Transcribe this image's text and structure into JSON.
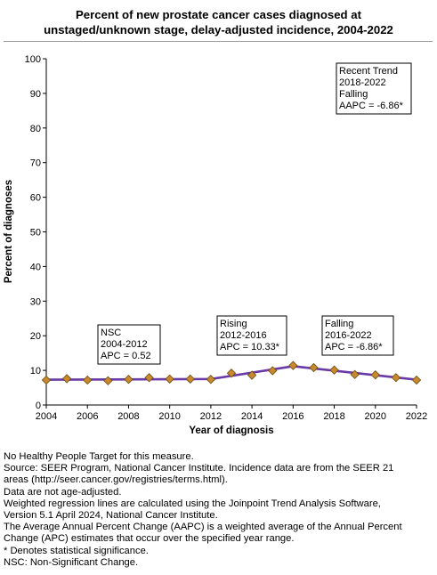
{
  "header": {
    "title_line1": "Percent of new prostate cancer cases diagnosed at",
    "title_line2": "unstaged/unknown stage, delay-adjusted incidence, 2004-2022"
  },
  "chart_data": {
    "type": "line",
    "xlabel": "Year of diagnosis",
    "ylabel": "Percent of diagnoses",
    "xlim": [
      2004,
      2022
    ],
    "ylim": [
      0,
      100
    ],
    "x_ticks": [
      2004,
      2006,
      2008,
      2010,
      2012,
      2014,
      2016,
      2018,
      2020,
      2022
    ],
    "y_ticks": [
      0,
      10,
      20,
      30,
      40,
      50,
      60,
      70,
      80,
      90,
      100
    ],
    "grid": false,
    "series": [
      {
        "kind": "observed",
        "marker": "diamond",
        "color": "#c8892e",
        "x": [
          2004,
          2005,
          2006,
          2007,
          2008,
          2009,
          2010,
          2011,
          2012,
          2013,
          2014,
          2015,
          2016,
          2017,
          2018,
          2019,
          2020,
          2021,
          2022
        ],
        "values": [
          7.2,
          7.6,
          7.2,
          7.0,
          7.4,
          7.9,
          7.5,
          7.5,
          7.4,
          9.2,
          8.6,
          9.9,
          11.4,
          10.8,
          10.1,
          8.8,
          8.7,
          7.9,
          7.2
        ]
      },
      {
        "kind": "fitted",
        "color": "#6a3aa8",
        "x": [
          2004,
          2012,
          2016,
          2022
        ],
        "values": [
          7.3,
          7.5,
          11.2,
          7.3
        ]
      }
    ],
    "annotations": [
      {
        "lines": [
          "NSC",
          "2004-2012",
          "APC =  0.52"
        ]
      },
      {
        "lines": [
          "Rising",
          "2012-2016",
          "APC = 10.33*"
        ]
      },
      {
        "lines": [
          "Falling",
          "2016-2022",
          "APC = -6.86*"
        ]
      },
      {
        "lines": [
          "Recent Trend",
          "2018-2022",
          "Falling",
          "AAPC = -6.86*"
        ]
      }
    ]
  },
  "footnotes": [
    "No Healthy People Target for this measure.",
    "Source: SEER Program, National Cancer Institute. Incidence data are from the SEER 21",
    "areas (http://seer.cancer.gov/registries/terms.html).",
    "Data are not age-adjusted.",
    "Weighted regression lines are calculated using the Joinpoint Trend Analysis Software,",
    "Version 5.1 April 2024, National Cancer Institute.",
    "The Average Annual Percent Change (AAPC) is a weighted average of the Annual Percent",
    "Change (APC) estimates that occur over the specified year range.",
    "* Denotes statistical significance.",
    "NSC: Non-Significant Change."
  ]
}
